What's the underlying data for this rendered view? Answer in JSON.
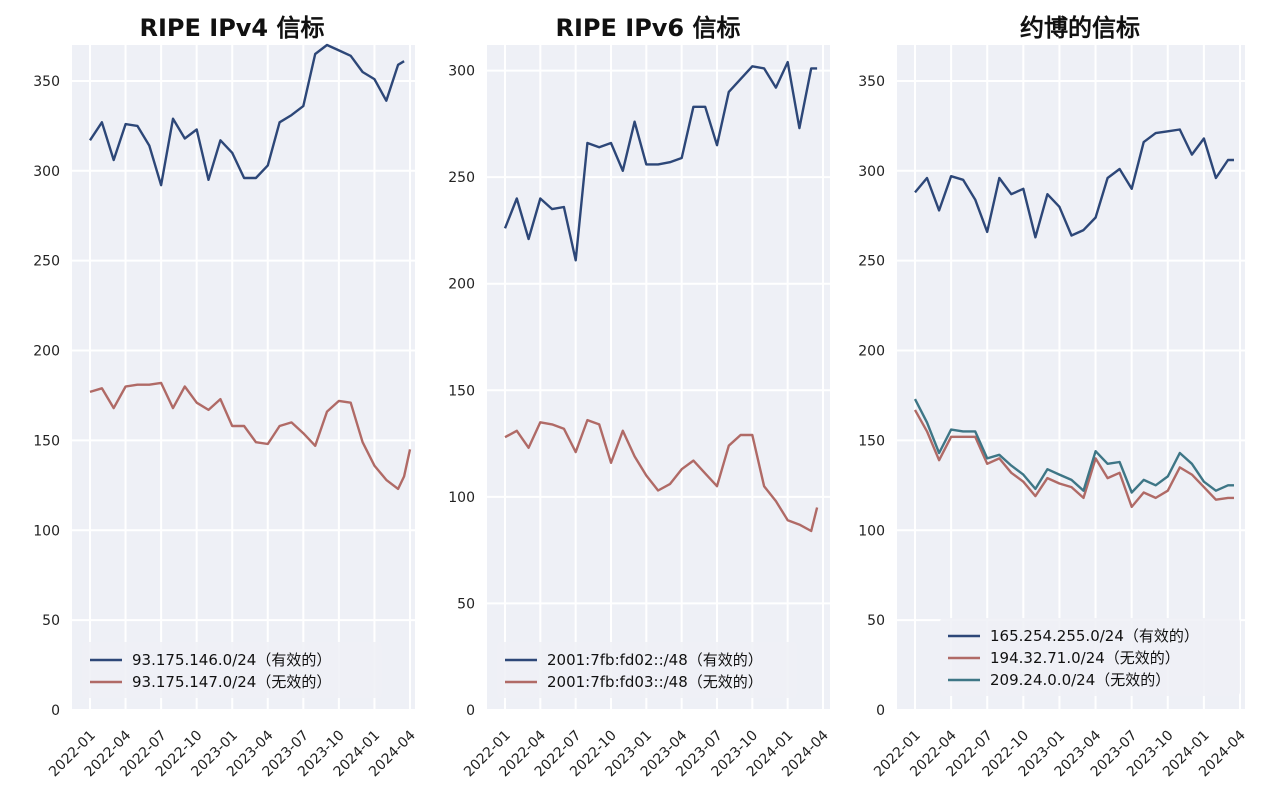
{
  "colors": {
    "valid": "#2d4778",
    "invalid_red": "#b06a66",
    "invalid_teal": "#3e7686",
    "plot_bg": "#eef0f6",
    "grid": "#ffffff"
  },
  "chart_data": [
    {
      "type": "line",
      "title": "RIPE IPv4 信标",
      "ylim": [
        0,
        370
      ],
      "yticks": [
        0,
        50,
        100,
        150,
        200,
        250,
        300,
        350
      ],
      "x": [
        "2022-01",
        "2022-02",
        "2022-03",
        "2022-04",
        "2022-05",
        "2022-06",
        "2022-07",
        "2022-08",
        "2022-09",
        "2022-10",
        "2022-11",
        "2022-12",
        "2023-01",
        "2023-02",
        "2023-03",
        "2023-04",
        "2023-05",
        "2023-06",
        "2023-07",
        "2023-08",
        "2023-09",
        "2023-10",
        "2023-11",
        "2023-12",
        "2024-01",
        "2024-02",
        "2024-03"
      ],
      "xticks": [
        "2022-01",
        "2022-04",
        "2022-07",
        "2022-10",
        "2023-01",
        "2023-04",
        "2023-07",
        "2023-10",
        "2024-01",
        "2024-04"
      ],
      "series": [
        {
          "name": "93.175.146.0/24（有效的）",
          "color": "#2d4778",
          "values": [
            317,
            327,
            306,
            326,
            325,
            314,
            292,
            329,
            318,
            323,
            295,
            317,
            310,
            296,
            296,
            303,
            327,
            331,
            336,
            365,
            370,
            367,
            364,
            355,
            351,
            339,
            359
          ]
        },
        {
          "name": "93.175.147.0/24（无效的）",
          "color": "#b06a66",
          "values": [
            177,
            179,
            168,
            180,
            181,
            181,
            182,
            168,
            180,
            171,
            167,
            173,
            158,
            158,
            149,
            148,
            158,
            160,
            154,
            147,
            166,
            172,
            171,
            149,
            136,
            128,
            123
          ]
        }
      ],
      "extra_tail": [
        [
          361
        ],
        [
          130,
          145
        ]
      ],
      "legend": "lower left"
    },
    {
      "type": "line",
      "title": "RIPE IPv6 信标",
      "ylim": [
        0,
        312
      ],
      "yticks": [
        0,
        50,
        100,
        150,
        200,
        250,
        300
      ],
      "x": [
        "2022-01",
        "2022-02",
        "2022-03",
        "2022-04",
        "2022-05",
        "2022-06",
        "2022-07",
        "2022-08",
        "2022-09",
        "2022-10",
        "2022-11",
        "2022-12",
        "2023-01",
        "2023-02",
        "2023-03",
        "2023-04",
        "2023-05",
        "2023-06",
        "2023-07",
        "2023-08",
        "2023-09",
        "2023-10",
        "2023-11",
        "2023-12",
        "2024-01",
        "2024-02",
        "2024-03"
      ],
      "xticks": [
        "2022-01",
        "2022-04",
        "2022-07",
        "2022-10",
        "2023-01",
        "2023-04",
        "2023-07",
        "2023-10",
        "2024-01",
        "2024-04"
      ],
      "series": [
        {
          "name": "2001:7fb:fd02::/48（有效的）",
          "color": "#2d4778",
          "values": [
            226,
            240,
            221,
            240,
            235,
            236,
            211,
            266,
            264,
            266,
            253,
            276,
            256,
            256,
            257,
            259,
            283,
            283,
            265,
            290,
            296,
            302,
            301,
            292,
            304,
            273,
            301
          ]
        },
        {
          "name": "2001:7fb:fd03::/48（无效的）",
          "color": "#b06a66",
          "values": [
            128,
            131,
            123,
            135,
            134,
            132,
            121,
            136,
            134,
            116,
            131,
            119,
            110,
            103,
            106,
            113,
            117,
            111,
            105,
            124,
            129,
            129,
            105,
            98,
            89,
            87,
            84
          ]
        }
      ],
      "extra_tail": [
        [
          301
        ],
        [
          95
        ]
      ],
      "legend": "lower left"
    },
    {
      "type": "line",
      "title": "约博的信标",
      "ylim": [
        0,
        370
      ],
      "yticks": [
        0,
        50,
        100,
        150,
        200,
        250,
        300,
        350
      ],
      "x": [
        "2022-01",
        "2022-02",
        "2022-03",
        "2022-04",
        "2022-05",
        "2022-06",
        "2022-07",
        "2022-08",
        "2022-09",
        "2022-10",
        "2022-11",
        "2022-12",
        "2023-01",
        "2023-02",
        "2023-03",
        "2023-04",
        "2023-05",
        "2023-06",
        "2023-07",
        "2023-08",
        "2023-09",
        "2023-10",
        "2023-11",
        "2023-12",
        "2024-01",
        "2024-02",
        "2024-03"
      ],
      "xticks": [
        "2022-01",
        "2022-04",
        "2022-07",
        "2022-10",
        "2023-01",
        "2023-04",
        "2023-07",
        "2023-10",
        "2024-01",
        "2024-04"
      ],
      "series": [
        {
          "name": "165.254.255.0/24（有效的）",
          "color": "#2d4778",
          "values": [
            288,
            296,
            278,
            297,
            295,
            284,
            266,
            296,
            287,
            290,
            263,
            287,
            280,
            264,
            267,
            274,
            296,
            301,
            290,
            316,
            321,
            322,
            323,
            309,
            318,
            296,
            306
          ]
        },
        {
          "name": "194.32.71.0/24（无效的）",
          "color": "#b06a66",
          "values": [
            167,
            155,
            139,
            152,
            152,
            152,
            137,
            140,
            132,
            127,
            119,
            129,
            126,
            124,
            118,
            140,
            129,
            132,
            113,
            121,
            118,
            122,
            135,
            131,
            124,
            117,
            118
          ]
        },
        {
          "name": "209.24.0.0/24（无效的）",
          "color": "#3e7686",
          "values": [
            173,
            160,
            143,
            156,
            155,
            155,
            140,
            142,
            136,
            131,
            123,
            134,
            131,
            128,
            122,
            144,
            137,
            138,
            121,
            128,
            125,
            130,
            143,
            137,
            127,
            122,
            125
          ]
        }
      ],
      "extra_tail": [
        [
          306
        ],
        [
          118
        ],
        [
          125
        ]
      ],
      "legend": "lower right"
    }
  ]
}
